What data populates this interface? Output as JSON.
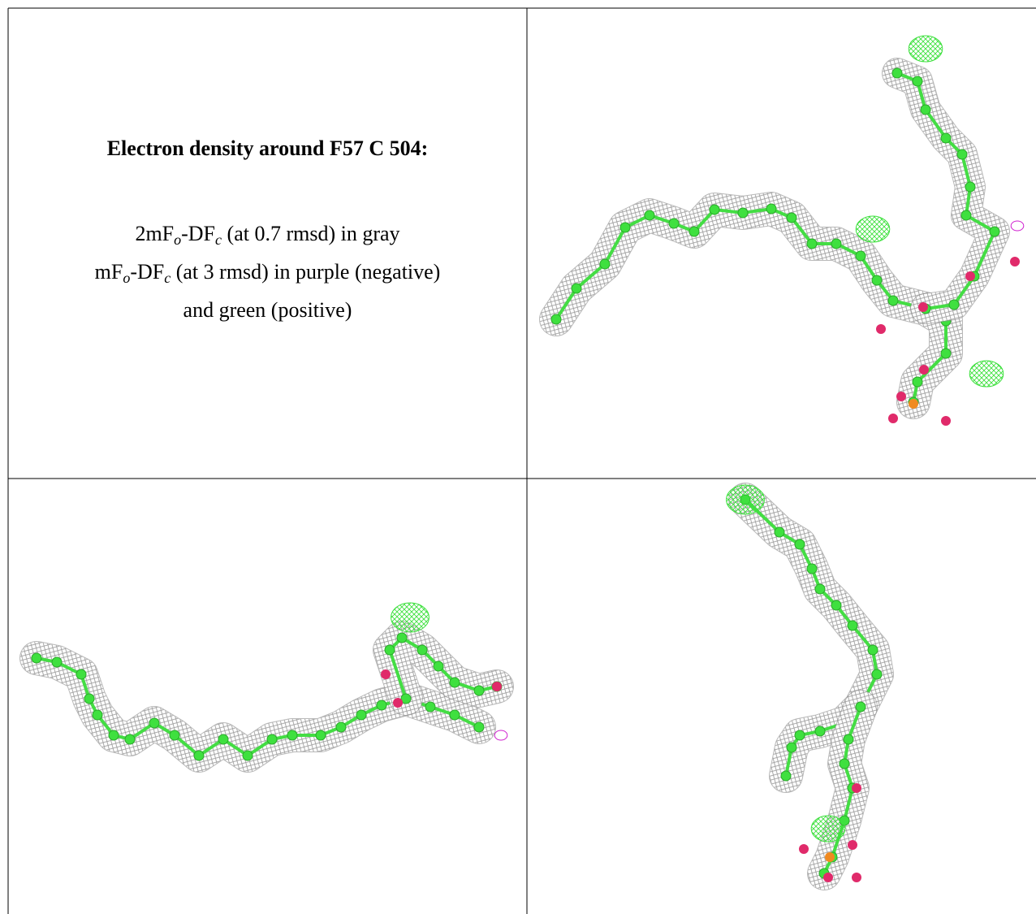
{
  "caption": {
    "title": "Electron density around F57 C 504:",
    "lines": [
      [
        "2mF",
        "o",
        "-DF",
        "c",
        " (at 0.7 rmsd) in gray"
      ],
      [
        "mF",
        "o",
        "-DF",
        "c",
        " (at 3 rmsd) in purple (negative)"
      ],
      [
        "and green (positive)"
      ]
    ]
  }
}
